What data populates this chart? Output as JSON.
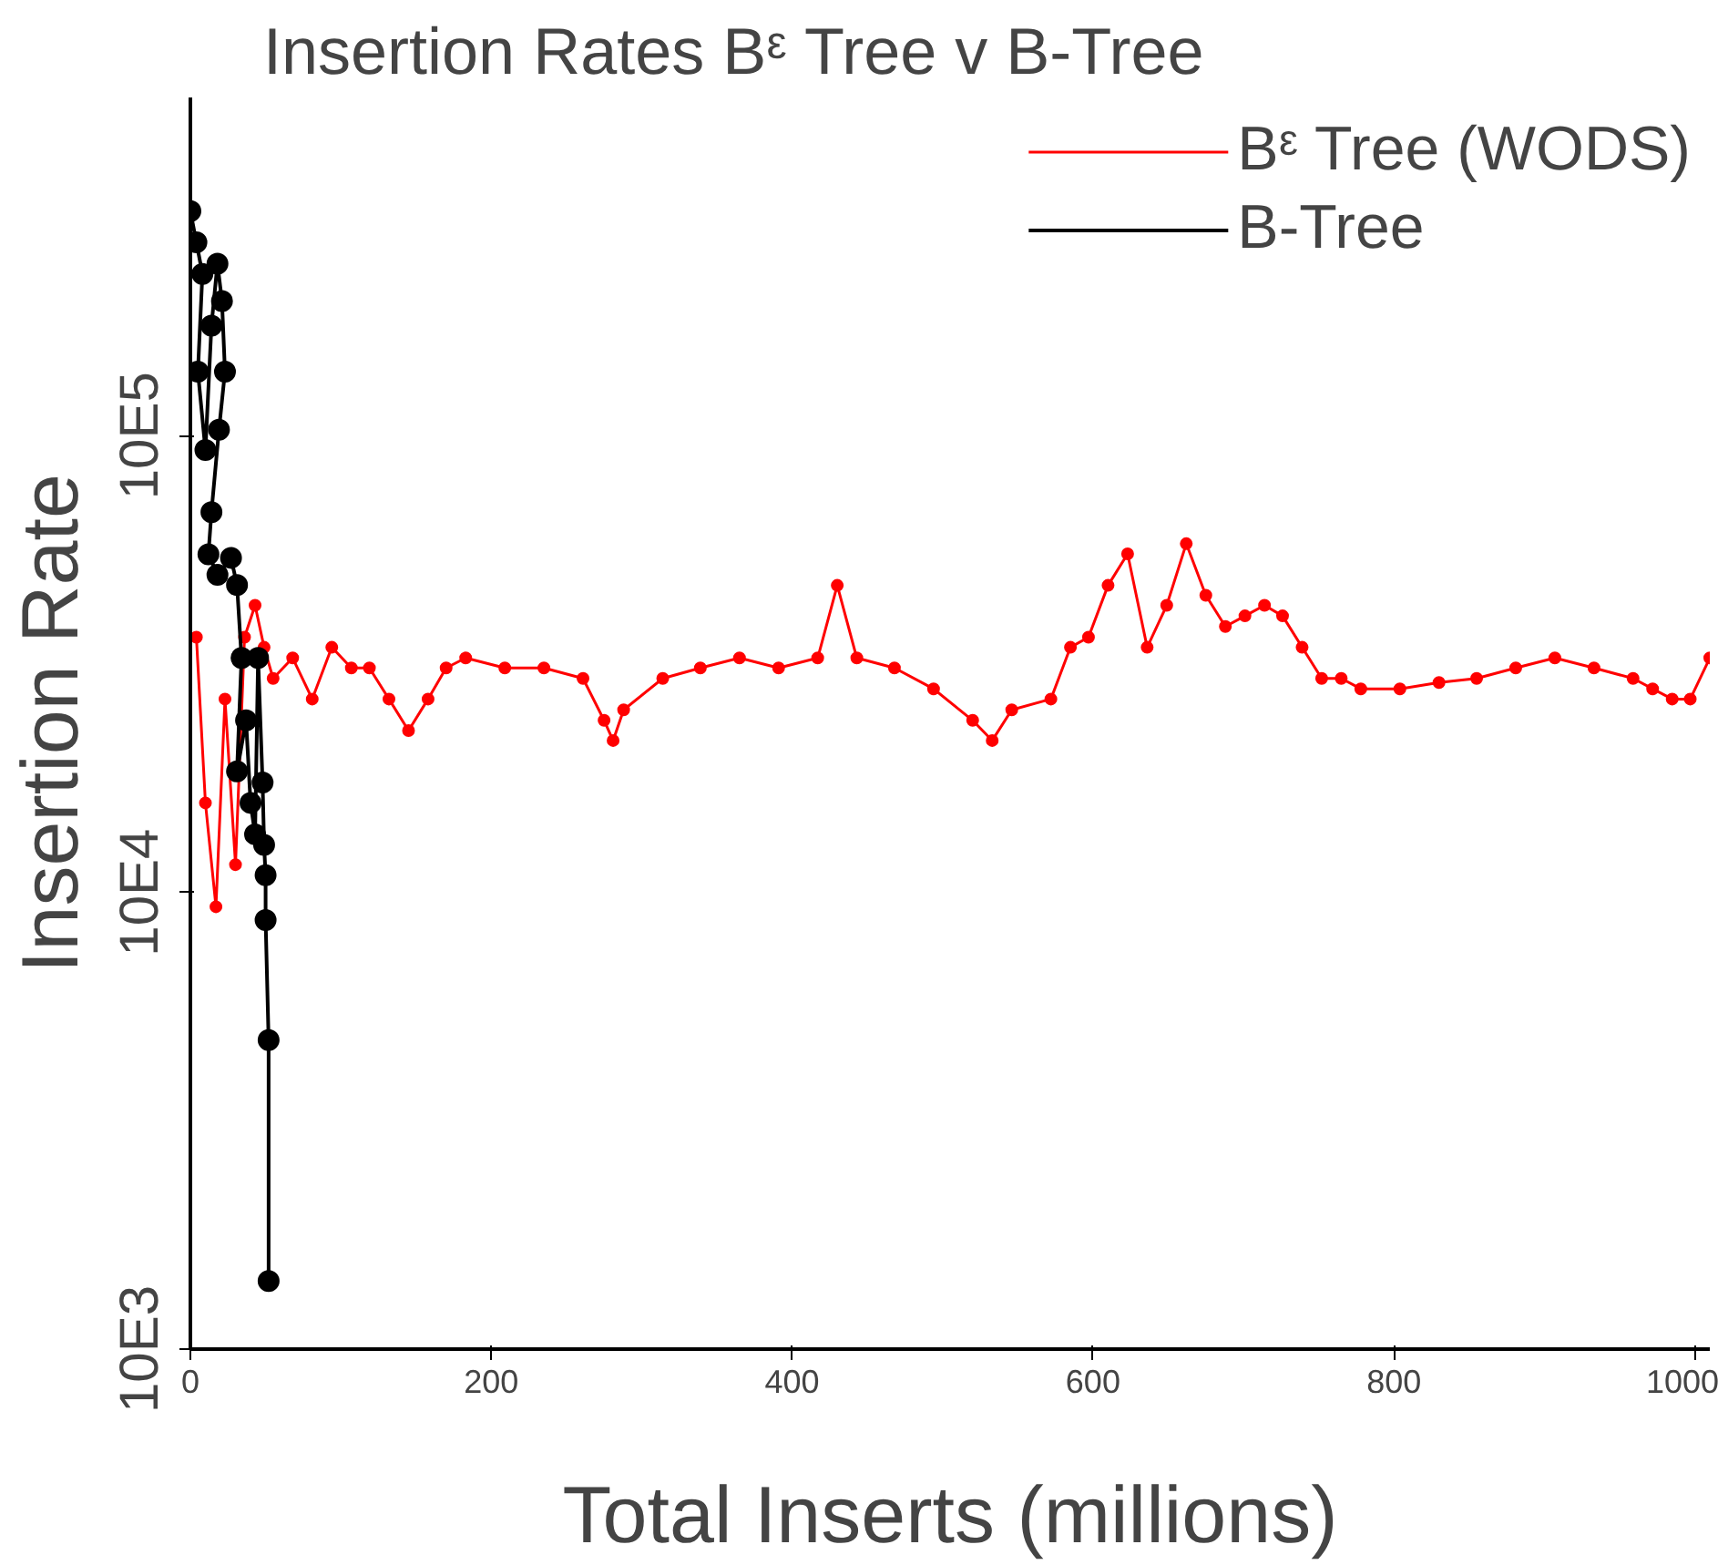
{
  "chart_data": {
    "type": "line",
    "title": "Insertion Rates Bᵋ Tree v B-Tree",
    "xlabel": "Total Inserts (millions)",
    "ylabel": "Insertion Rate",
    "log": "y",
    "grid": false,
    "legend": "top right",
    "marker": "circle",
    "line_style": "solid",
    "xlim": [
      0,
      1010
    ],
    "xticks": [
      0,
      200,
      400,
      600,
      800,
      1000
    ],
    "ylim": [
      10000,
      5500000
    ],
    "yticks": [
      {
        "value": 10000,
        "label": "10E3"
      },
      {
        "value": 100000,
        "label": "10E4"
      },
      {
        "value": 1000000,
        "label": "10E5"
      }
    ],
    "series": [
      {
        "name": "Bᵋ Tree (WODS)",
        "color": "#ff0000",
        "x": [
          4,
          10,
          17,
          23,
          30,
          36,
          43,
          49,
          55,
          68,
          81,
          94,
          107,
          119,
          132,
          145,
          158,
          170,
          183,
          209,
          235,
          261,
          275,
          281,
          288,
          314,
          339,
          365,
          391,
          417,
          430,
          443,
          468,
          494,
          520,
          533,
          546,
          572,
          585,
          597,
          610,
          623,
          636,
          649,
          662,
          675,
          688,
          701,
          714,
          726,
          739,
          752,
          765,
          778,
          804,
          830,
          855,
          881,
          907,
          933,
          959,
          972,
          985,
          997,
          1010
        ],
        "values": [
          362000,
          157000,
          93000,
          265000,
          115000,
          362000,
          425000,
          344000,
          294000,
          326000,
          265000,
          344000,
          310000,
          310000,
          265000,
          226000,
          265000,
          310000,
          326000,
          310000,
          310000,
          294000,
          238000,
          215000,
          251000,
          294000,
          310000,
          326000,
          310000,
          326000,
          470000,
          326000,
          310000,
          279000,
          238000,
          215000,
          251000,
          265000,
          344000,
          362000,
          470000,
          551000,
          344000,
          425000,
          580000,
          447000,
          382000,
          403000,
          425000,
          403000,
          344000,
          294000,
          294000,
          279000,
          279000,
          288000,
          294000,
          310000,
          326000,
          310000,
          294000,
          279000,
          265000,
          265000,
          326000
        ]
      },
      {
        "name": "B-Tree",
        "color": "#000000",
        "x": [
          0,
          4,
          8,
          5,
          10,
          14,
          18,
          21,
          23,
          19,
          14,
          12,
          18,
          27,
          31,
          34,
          31,
          37,
          40,
          43,
          45,
          48,
          49,
          50,
          50,
          52,
          52
        ],
        "values": [
          3100000,
          2650000,
          2260000,
          1380000,
          930000,
          1740000,
          2380000,
          1970000,
          1380000,
          1030000,
          680000,
          550000,
          496000,
          540000,
          471000,
          326000,
          184000,
          238000,
          157000,
          134000,
          326000,
          174000,
          127000,
          109000,
          87000,
          47500,
          14100
        ]
      }
    ]
  }
}
